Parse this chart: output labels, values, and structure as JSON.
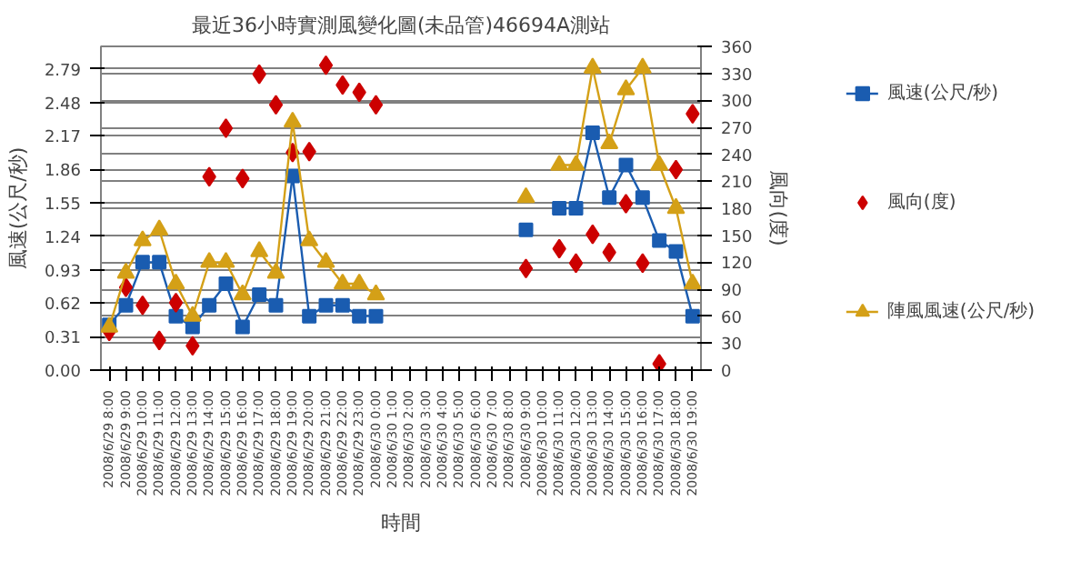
{
  "chart_data": {
    "type": "line",
    "title": "最近36小時實測風變化圖(未品管)46694A測站",
    "xlabel": "時間",
    "ylabel": "風速(公尺/秒)",
    "y2label": "風向(度)",
    "categories": [
      "2008/6/29 8:00",
      "2008/6/29 9:00",
      "2008/6/29 10:00",
      "2008/6/29 11:00",
      "2008/6/29 12:00",
      "2008/6/29 13:00",
      "2008/6/29 14:00",
      "2008/6/29 15:00",
      "2008/6/29 16:00",
      "2008/6/29 17:00",
      "2008/6/29 18:00",
      "2008/6/29 19:00",
      "2008/6/29 20:00",
      "2008/6/29 21:00",
      "2008/6/29 22:00",
      "2008/6/29 23:00",
      "2008/6/30 0:00",
      "2008/6/30 1:00",
      "2008/6/30 2:00",
      "2008/6/30 3:00",
      "2008/6/30 4:00",
      "2008/6/30 5:00",
      "2008/6/30 6:00",
      "2008/6/30 7:00",
      "2008/6/30 8:00",
      "2008/6/30 9:00",
      "2008/6/30 10:00",
      "2008/6/30 11:00",
      "2008/6/30 12:00",
      "2008/6/30 13:00",
      "2008/6/30 14:00",
      "2008/6/30 15:00",
      "2008/6/30 16:00",
      "2008/6/30 17:00",
      "2008/6/30 18:00",
      "2008/6/30 19:00"
    ],
    "series": [
      {
        "name": "風速(公尺/秒)",
        "marker": "square",
        "color": "#1a5cb0",
        "values": [
          0.42,
          0.6,
          1.0,
          1.0,
          0.5,
          0.4,
          0.6,
          0.8,
          0.4,
          0.7,
          0.6,
          1.8,
          0.5,
          0.6,
          0.6,
          0.5,
          0.5,
          null,
          null,
          null,
          null,
          null,
          null,
          null,
          null,
          1.3,
          null,
          1.5,
          1.5,
          2.2,
          1.6,
          1.9,
          1.6,
          1.2,
          1.1,
          0.5
        ]
      },
      {
        "name": "風向(度)",
        "type": "scatter",
        "marker": "diamond",
        "axis": "y2",
        "color": "#cc0000",
        "values": [
          43,
          92,
          72,
          33,
          75,
          27,
          215,
          269,
          213,
          329,
          295,
          242,
          243,
          339,
          317,
          309,
          295,
          null,
          null,
          null,
          null,
          null,
          null,
          null,
          null,
          113,
          null,
          135,
          119,
          151,
          131,
          185,
          119,
          7,
          223,
          285
        ]
      },
      {
        "name": "陣風風速(公尺/秒)",
        "marker": "triangle",
        "color": "#d4a017",
        "values": [
          0.4,
          0.9,
          1.2,
          1.3,
          0.8,
          0.5,
          1.0,
          1.0,
          0.7,
          1.1,
          0.9,
          2.3,
          1.2,
          1.0,
          0.8,
          0.8,
          0.7,
          null,
          null,
          null,
          null,
          null,
          null,
          null,
          null,
          1.6,
          null,
          1.9,
          1.9,
          2.8,
          2.1,
          2.6,
          2.8,
          1.9,
          1.5,
          0.8
        ]
      }
    ],
    "ylim": [
      0,
      3.0
    ],
    "yticks": [
      {
        "value": 0,
        "label": "0.00"
      },
      {
        "value": 0.31,
        "label": "0.31"
      },
      {
        "value": 0.62,
        "label": "0.62"
      },
      {
        "value": 0.93,
        "label": "0.93"
      },
      {
        "value": 1.24,
        "label": "1.24"
      },
      {
        "value": 1.55,
        "label": "1.55"
      },
      {
        "value": 1.86,
        "label": "1.86"
      },
      {
        "value": 2.17,
        "label": "2.17"
      },
      {
        "value": 2.48,
        "label": "2.48"
      },
      {
        "value": 2.79,
        "label": "2.79"
      }
    ],
    "y2lim": [
      0,
      360
    ],
    "y2ticks": [
      0,
      30,
      60,
      90,
      120,
      150,
      180,
      210,
      240,
      270,
      300,
      330,
      360
    ],
    "grid": "y",
    "legend": "right"
  }
}
